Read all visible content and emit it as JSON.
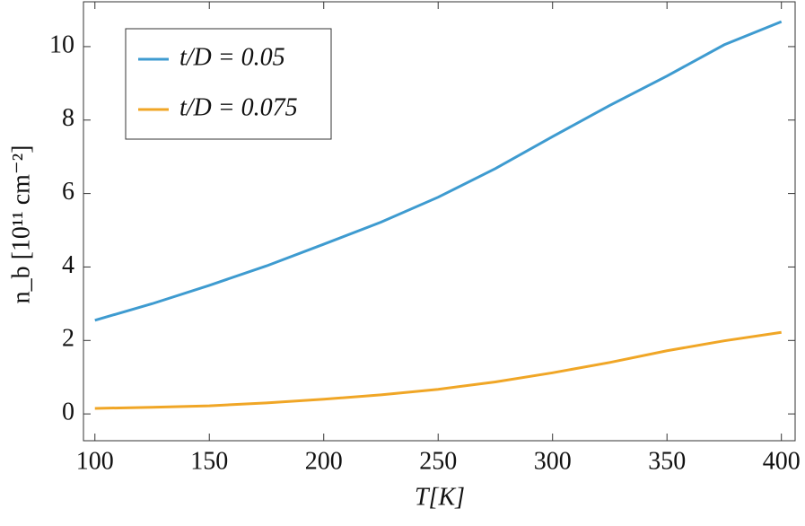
{
  "chart_data": {
    "type": "line",
    "x_label": "T[K]",
    "y_label": "n_b [10¹¹ cm⁻²]",
    "x": [
      100,
      125,
      150,
      175,
      200,
      225,
      250,
      275,
      300,
      325,
      350,
      375,
      400
    ],
    "series": [
      {
        "name": "t/D = 0.05",
        "color": "#3e9bd0",
        "values": [
          2.55,
          3.0,
          3.5,
          4.03,
          4.62,
          5.22,
          5.9,
          6.68,
          7.55,
          8.4,
          9.2,
          10.05,
          10.68
        ]
      },
      {
        "name": "t/D = 0.075",
        "color": "#f0a626",
        "values": [
          0.15,
          0.18,
          0.22,
          0.3,
          0.4,
          0.52,
          0.67,
          0.87,
          1.12,
          1.4,
          1.72,
          1.99,
          2.22
        ]
      }
    ],
    "xlim": [
      95,
      406
    ],
    "ylim": [
      -0.73,
      11.22
    ],
    "xticks": [
      100,
      150,
      200,
      250,
      300,
      350,
      400
    ],
    "yticks": [
      0,
      2,
      4,
      6,
      8,
      10
    ],
    "legend": "upper left"
  }
}
